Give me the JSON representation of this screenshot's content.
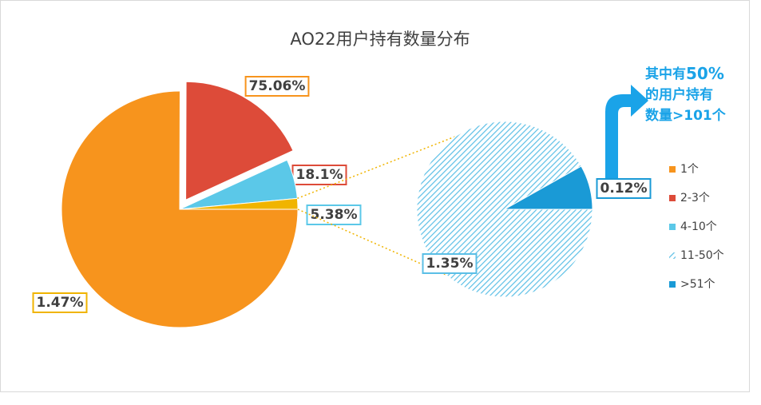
{
  "chart_data": {
    "type": "pie-of-pie",
    "title": "AO22用户持有数量分布",
    "start_angle": 90,
    "explode": [
      0,
      1,
      0,
      0
    ],
    "primary": {
      "categories": [
        "1个",
        "2-3个",
        "4-10个",
        null
      ],
      "values": [
        75.06,
        18.1,
        5.38,
        1.47
      ],
      "value_labels": [
        "75.06%",
        "18.1%",
        "5.38%",
        "1.47%"
      ],
      "colors": [
        "#f7941d",
        "#dd4b39",
        "#5bc8e8",
        "#f0b400"
      ]
    },
    "secondary": {
      "categories": [
        "11-50个",
        ">51个"
      ],
      "values": [
        1.35,
        0.12
      ],
      "value_labels": [
        "1.35%",
        "0.12%"
      ],
      "colors": [
        "#5bbfe6",
        "#1a9ad6"
      ],
      "fills": [
        "hatched",
        "solid"
      ]
    },
    "annotation": [
      "其中有",
      "50%",
      "的用户持有",
      "数量>101个"
    ]
  }
}
